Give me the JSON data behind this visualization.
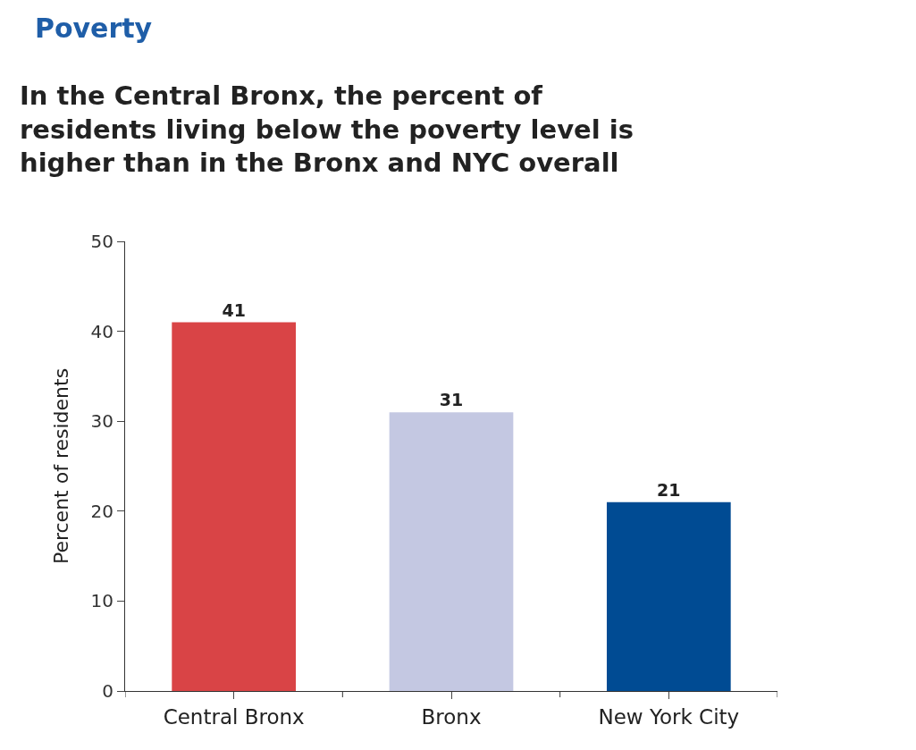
{
  "chart_data": {
    "type": "bar",
    "title": "Poverty",
    "subtitle": "In the Central Bronx, the percent of\nresidents living below the poverty level is\nhigher than in the Bronx and NYC overall",
    "ylabel": "Percent of residents",
    "categories": [
      "Central Bronx",
      "Bronx",
      "New York City"
    ],
    "values": [
      41,
      31,
      21
    ],
    "colors": [
      "#d94446",
      "#c4c8e2",
      "#004b93"
    ],
    "ylim": [
      0,
      50
    ],
    "yticks": [
      0,
      10,
      20,
      30,
      40,
      50
    ],
    "data_labels": true
  }
}
